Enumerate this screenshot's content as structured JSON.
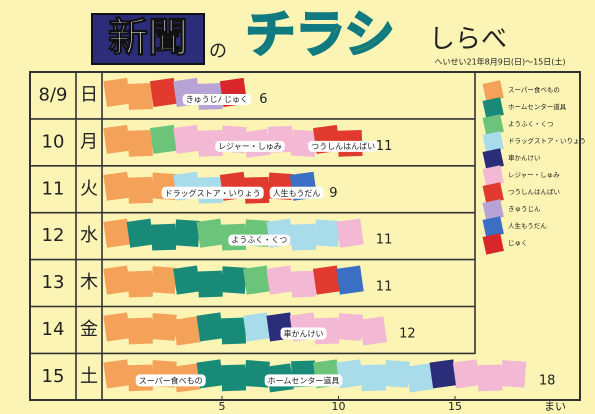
{
  "chart_data": {
    "type": "stacked-squares",
    "title_main": "新聞",
    "title_no": "の",
    "title_chirashi": "チラシ",
    "title_shirabe": "しらべ",
    "subtitle": "へいせい21年8月9日(日)〜15日(土)",
    "categories": [
      "8/9",
      "10",
      "11",
      "12",
      "13",
      "14",
      "15"
    ],
    "weekdays": [
      "日",
      "月",
      "火",
      "水",
      "木",
      "金",
      "土"
    ],
    "totals": [
      6,
      11,
      9,
      11,
      11,
      12,
      18
    ],
    "xlim": [
      0,
      20
    ],
    "xticks": [
      5,
      10,
      15
    ],
    "x_label": "まい",
    "series": [
      {
        "name": "スーパー食べもの",
        "color": "#f4a259",
        "values": [
          2,
          2,
          3,
          1,
          3,
          4,
          4
        ]
      },
      {
        "name": "ホームセンター道具",
        "color": "#1a8a78",
        "values": [
          0,
          0,
          0,
          3,
          3,
          2,
          5
        ]
      },
      {
        "name": "ようふく・くつ",
        "color": "#6cc47a",
        "values": [
          0,
          1,
          0,
          3,
          1,
          0,
          1
        ]
      },
      {
        "name": "ドラッグストア・いりょう",
        "color": "#a8dcea",
        "values": [
          0,
          0,
          2,
          3,
          0,
          1,
          4
        ]
      },
      {
        "name": "車かんけい",
        "color": "#2b2d7a",
        "values": [
          0,
          0,
          0,
          0,
          0,
          1,
          1
        ]
      },
      {
        "name": "レジャー・しゅみ",
        "color": "#f2b8d4",
        "values": [
          0,
          6,
          0,
          1,
          2,
          4,
          3
        ]
      },
      {
        "name": "つうしんはんばい",
        "color": "#e03a2e",
        "values": [
          1,
          2,
          3,
          0,
          1,
          0,
          0
        ]
      },
      {
        "name": "きゅうじん",
        "color": "#b8a3d6",
        "values": [
          2,
          0,
          0,
          0,
          0,
          0,
          0
        ]
      },
      {
        "name": "人生もうだん",
        "color": "#3b6fc4",
        "values": [
          0,
          0,
          1,
          0,
          1,
          0,
          0
        ]
      },
      {
        "name": "じゅく",
        "color": "#d8262a",
        "values": [
          1,
          0,
          0,
          0,
          0,
          0,
          0
        ]
      }
    ],
    "annotations": [
      "きゅうじん",
      "じゅく",
      "レジャー・しゅみ",
      "つうしんはんばい",
      "ドラッグストア・いりょう",
      "人生もうだん",
      "ようふく・くつ",
      "車かんけい",
      "スーパー食べもの",
      "ホームセンター道具"
    ]
  }
}
